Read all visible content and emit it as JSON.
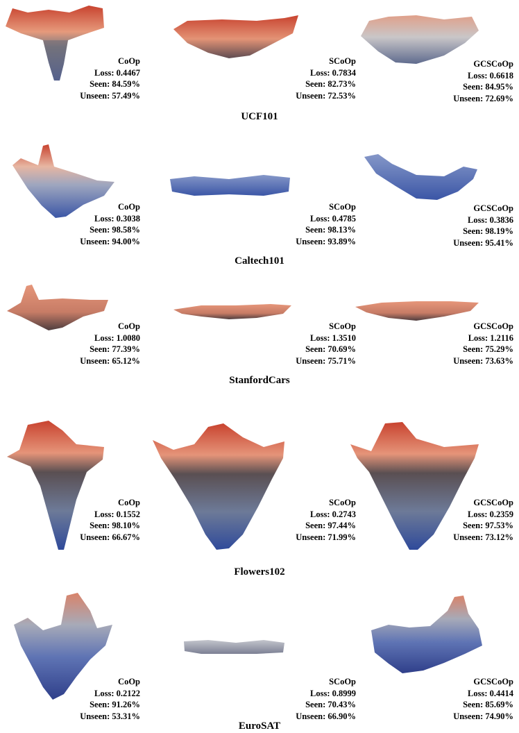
{
  "figure": {
    "colors": {
      "high": "#c8432f",
      "mid_warm": "#e08f72",
      "mid": "#8a8d96",
      "low": "#3b56a6",
      "dark": "#2f3350"
    },
    "rows": [
      {
        "dataset": "UCF101",
        "panels": [
          {
            "method": "CoOp",
            "loss": "Loss: 0.4467",
            "seen": "Seen: 84.59%",
            "unseen": "Unseen: 57.49%",
            "surface": "narrow-funnel-warm"
          },
          {
            "method": "SCoOp",
            "loss": "Loss: 0.7834",
            "seen": "Seen: 82.73%",
            "unseen": "Unseen: 72.53%",
            "surface": "shallow-bowl-warm"
          },
          {
            "method": "GCSCoOp",
            "loss": "Loss: 0.6618",
            "seen": "Seen: 84.95%",
            "unseen": "Unseen: 72.69%",
            "surface": "bowl-warm-grey"
          }
        ]
      },
      {
        "dataset": "Caltech101",
        "panels": [
          {
            "method": "CoOp",
            "loss": "Loss: 0.3038",
            "seen": "Seen: 98.58%",
            "unseen": "Unseen: 94.00%",
            "surface": "peaked-blue"
          },
          {
            "method": "SCoOp",
            "loss": "Loss: 0.4785",
            "seen": "Seen: 98.13%",
            "unseen": "Unseen: 93.89%",
            "surface": "flat-blue"
          },
          {
            "method": "GCSCoOp",
            "loss": "Loss: 0.3836",
            "seen": "Seen: 98.19%",
            "unseen": "Unseen: 95.41%",
            "surface": "curved-blue"
          }
        ]
      },
      {
        "dataset": "StanfordCars",
        "panels": [
          {
            "method": "CoOp",
            "loss": "Loss: 1.0080",
            "seen": "Seen: 77.39%",
            "unseen": "Unseen: 65.12%",
            "surface": "flat-spike-warm"
          },
          {
            "method": "SCoOp",
            "loss": "Loss: 1.3510",
            "seen": "Seen: 70.69%",
            "unseen": "Unseen: 75.71%",
            "surface": "flat-warm"
          },
          {
            "method": "GCSCoOp",
            "loss": "Loss: 1.2116",
            "seen": "Seen: 75.29%",
            "unseen": "Unseen: 73.63%",
            "surface": "flat-warm"
          }
        ]
      },
      {
        "dataset": "Flowers102",
        "panels": [
          {
            "method": "CoOp",
            "loss": "Loss: 0.1552",
            "seen": "Seen: 98.10%",
            "unseen": "Unseen: 66.67%",
            "surface": "deep-funnel"
          },
          {
            "method": "SCoOp",
            "loss": "Loss: 0.2743",
            "seen": "Seen: 97.44%",
            "unseen": "Unseen: 71.99%",
            "surface": "deep-funnel"
          },
          {
            "method": "GCSCoOp",
            "loss": "Loss: 0.2359",
            "seen": "Seen: 97.53%",
            "unseen": "Unseen: 73.12%",
            "surface": "deep-funnel"
          }
        ]
      },
      {
        "dataset": "EuroSAT",
        "panels": [
          {
            "method": "CoOp",
            "loss": "Loss: 0.2122",
            "seen": "Seen: 91.26%",
            "unseen": "Unseen: 53.31%",
            "surface": "spiky-blue-funnel"
          },
          {
            "method": "SCoOp",
            "loss": "Loss: 0.8999",
            "seen": "Seen: 70.43%",
            "unseen": "Unseen: 66.90%",
            "surface": "flat-grey"
          },
          {
            "method": "GCSCoOp",
            "loss": "Loss: 0.4414",
            "seen": "Seen: 85.69%",
            "unseen": "Unseen: 74.90%",
            "surface": "spiky-blue-bowl"
          }
        ]
      }
    ]
  }
}
